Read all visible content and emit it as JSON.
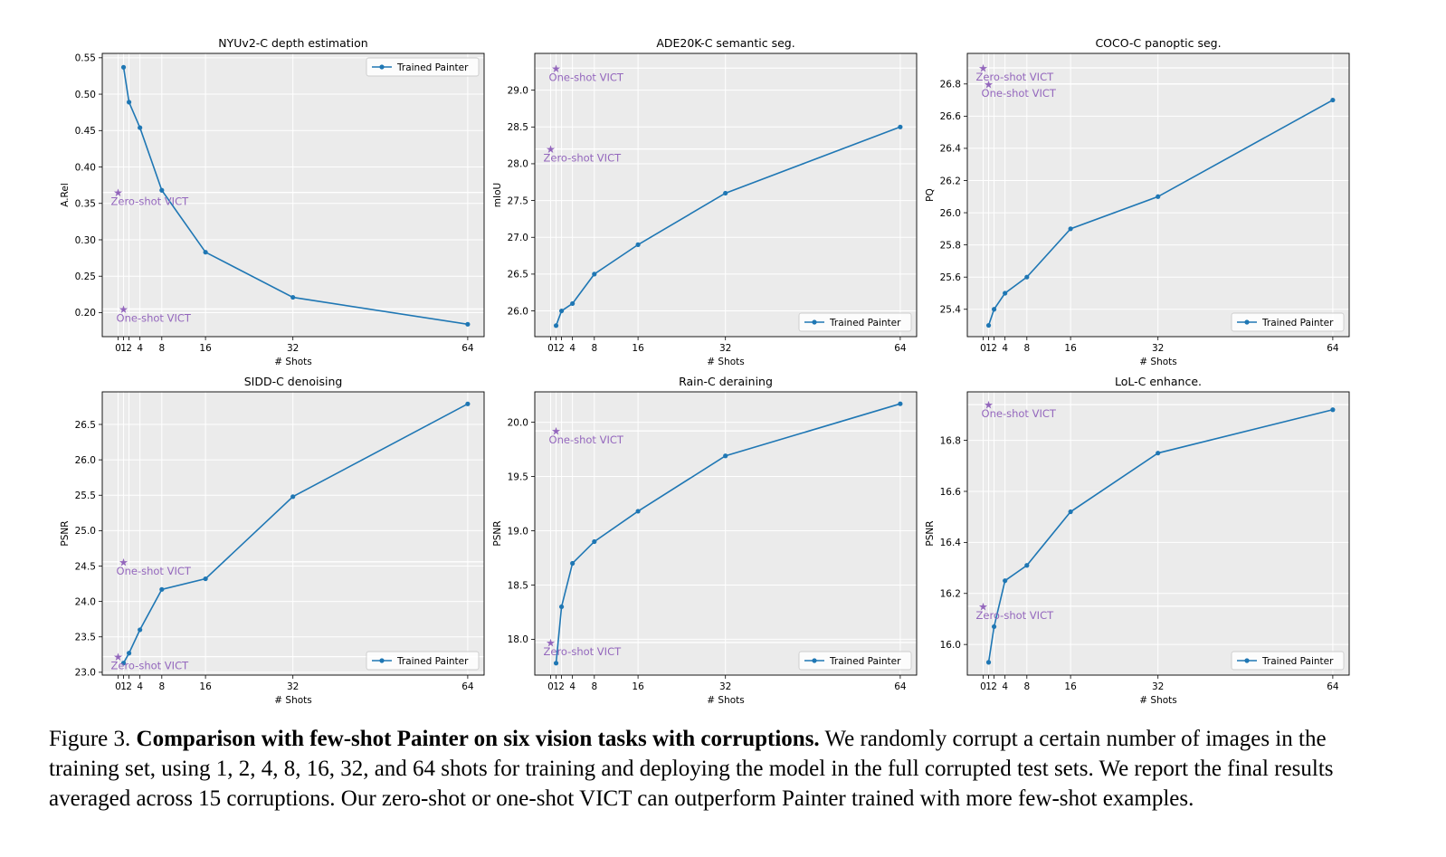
{
  "chart_data": [
    {
      "type": "line",
      "title": "NYUv2-C depth estimation",
      "xlabel": "# Shots",
      "ylabel": "A.Rel",
      "xlim": [
        -2.9,
        67
      ],
      "ylim": [
        0.167,
        0.556
      ],
      "xticks": [
        0,
        1,
        2,
        4,
        8,
        16,
        32,
        64
      ],
      "yticks": [
        0.2,
        0.25,
        0.3,
        0.35,
        0.4,
        0.45,
        0.5,
        0.55
      ],
      "ytick_labels": [
        "0.20",
        "0.25",
        "0.30",
        "0.35",
        "0.40",
        "0.45",
        "0.50",
        "0.55"
      ],
      "grid": true,
      "legend": "upper right",
      "series": [
        {
          "name": "Trained Painter",
          "x": [
            1,
            2,
            4,
            8,
            16,
            32,
            64
          ],
          "y": [
            0.537,
            0.489,
            0.454,
            0.368,
            0.283,
            0.221,
            0.184
          ]
        }
      ],
      "stars": [
        {
          "label": "Zero-shot VICT",
          "x": 0,
          "y": 0.365
        },
        {
          "label": "One-shot VICT",
          "x": 1,
          "y": 0.205
        }
      ]
    },
    {
      "type": "line",
      "title": "ADE20K-C semantic seg.",
      "xlabel": "# Shots",
      "ylabel": "mIoU",
      "xlim": [
        -2.9,
        67
      ],
      "ylim": [
        25.65,
        29.5
      ],
      "xticks": [
        0,
        1,
        2,
        4,
        8,
        16,
        32,
        64
      ],
      "yticks": [
        26.0,
        26.5,
        27.0,
        27.5,
        28.0,
        28.5,
        29.0
      ],
      "ytick_labels": [
        "26.0",
        "26.5",
        "27.0",
        "27.5",
        "28.0",
        "28.5",
        "29.0"
      ],
      "grid": true,
      "legend": "lower right",
      "series": [
        {
          "name": "Trained Painter",
          "x": [
            1,
            2,
            4,
            8,
            16,
            32,
            64
          ],
          "y": [
            25.8,
            26.0,
            26.1,
            26.5,
            26.9,
            27.6,
            28.5
          ]
        }
      ],
      "stars": [
        {
          "label": "One-shot VICT",
          "x": 1,
          "y": 29.3
        },
        {
          "label": "Zero-shot VICT",
          "x": 0,
          "y": 28.2
        }
      ]
    },
    {
      "type": "line",
      "title": "COCO-C panoptic seg.",
      "xlabel": "# Shots",
      "ylabel": "PQ",
      "xlim": [
        -2.9,
        67
      ],
      "ylim": [
        25.23,
        26.99
      ],
      "xticks": [
        0,
        1,
        2,
        4,
        8,
        16,
        32,
        64
      ],
      "yticks": [
        25.4,
        25.6,
        25.8,
        26.0,
        26.2,
        26.4,
        26.6,
        26.8
      ],
      "ytick_labels": [
        "25.4",
        "25.6",
        "25.8",
        "26.0",
        "26.2",
        "26.4",
        "26.6",
        "26.8"
      ],
      "grid": true,
      "legend": "lower right",
      "series": [
        {
          "name": "Trained Painter",
          "x": [
            1,
            2,
            4,
            8,
            16,
            32,
            64
          ],
          "y": [
            25.3,
            25.4,
            25.5,
            25.6,
            25.9,
            26.1,
            26.7
          ]
        }
      ],
      "stars": [
        {
          "label": "Zero-shot VICT",
          "x": 0,
          "y": 26.9
        },
        {
          "label": "One-shot VICT",
          "x": 1,
          "y": 26.8
        }
      ]
    },
    {
      "type": "line",
      "title": "SIDD-C denoising",
      "xlabel": "# Shots",
      "ylabel": "PSNR",
      "xlim": [
        -2.9,
        67
      ],
      "ylim": [
        22.96,
        26.96
      ],
      "xticks": [
        0,
        1,
        2,
        4,
        8,
        16,
        32,
        64
      ],
      "yticks": [
        23.0,
        23.5,
        24.0,
        24.5,
        25.0,
        25.5,
        26.0,
        26.5
      ],
      "ytick_labels": [
        "23.0",
        "23.5",
        "24.0",
        "24.5",
        "25.0",
        "25.5",
        "26.0",
        "26.5"
      ],
      "grid": true,
      "legend": "lower right",
      "series": [
        {
          "name": "Trained Painter",
          "x": [
            1,
            2,
            4,
            8,
            16,
            32,
            64
          ],
          "y": [
            23.13,
            23.27,
            23.6,
            24.17,
            24.32,
            25.48,
            26.79
          ]
        }
      ],
      "stars": [
        {
          "label": "One-shot VICT",
          "x": 1,
          "y": 24.56
        },
        {
          "label": "Zero-shot VICT",
          "x": 0,
          "y": 23.22
        }
      ]
    },
    {
      "type": "line",
      "title": "Rain-C deraining",
      "xlabel": "# Shots",
      "ylabel": "PSNR",
      "xlim": [
        -2.9,
        67
      ],
      "ylim": [
        17.67,
        20.28
      ],
      "xticks": [
        0,
        1,
        2,
        4,
        8,
        16,
        32,
        64
      ],
      "yticks": [
        18.0,
        18.5,
        19.0,
        19.5,
        20.0
      ],
      "ytick_labels": [
        "18.0",
        "18.5",
        "19.0",
        "19.5",
        "20.0"
      ],
      "grid": true,
      "legend": "lower right",
      "series": [
        {
          "name": "Trained Painter",
          "x": [
            1,
            2,
            4,
            8,
            16,
            32,
            64
          ],
          "y": [
            17.78,
            18.3,
            18.7,
            18.9,
            19.18,
            19.69,
            20.17
          ]
        }
      ],
      "stars": [
        {
          "label": "One-shot VICT",
          "x": 1,
          "y": 19.92
        },
        {
          "label": "Zero-shot VICT",
          "x": 0,
          "y": 17.97
        }
      ]
    },
    {
      "type": "line",
      "title": "LoL-C enhance.",
      "xlabel": "# Shots",
      "ylabel": "PSNR",
      "xlim": [
        -2.9,
        67
      ],
      "ylim": [
        15.88,
        16.99
      ],
      "xticks": [
        0,
        1,
        2,
        4,
        8,
        16,
        32,
        64
      ],
      "yticks": [
        16.0,
        16.2,
        16.4,
        16.6,
        16.8
      ],
      "ytick_labels": [
        "16.0",
        "16.2",
        "16.4",
        "16.6",
        "16.8"
      ],
      "grid": true,
      "legend": "lower right",
      "series": [
        {
          "name": "Trained Painter",
          "x": [
            1,
            2,
            4,
            8,
            16,
            32,
            64
          ],
          "y": [
            15.93,
            16.07,
            16.25,
            16.31,
            16.52,
            16.75,
            16.92
          ]
        }
      ],
      "stars": [
        {
          "label": "One-shot VICT",
          "x": 1,
          "y": 16.94
        },
        {
          "label": "Zero-shot VICT",
          "x": 0,
          "y": 16.15
        }
      ]
    }
  ],
  "colors": {
    "series": "#1f77b4",
    "star": "#9467bd",
    "plot_bg": "#ebebeb",
    "grid": "#ffffff"
  },
  "caption": {
    "label": "Figure 3.",
    "bold": "Comparison with few-shot Painter on six vision tasks with corruptions.",
    "text": "We randomly corrupt a certain number of images in the training set, using 1, 2, 4, 8, 16, 32, and 64 shots for training and deploying the model in the full corrupted test sets. We report the final results averaged across 15 corruptions. Our zero-shot or one-shot VICT can outperform Painter trained with more few-shot examples."
  }
}
